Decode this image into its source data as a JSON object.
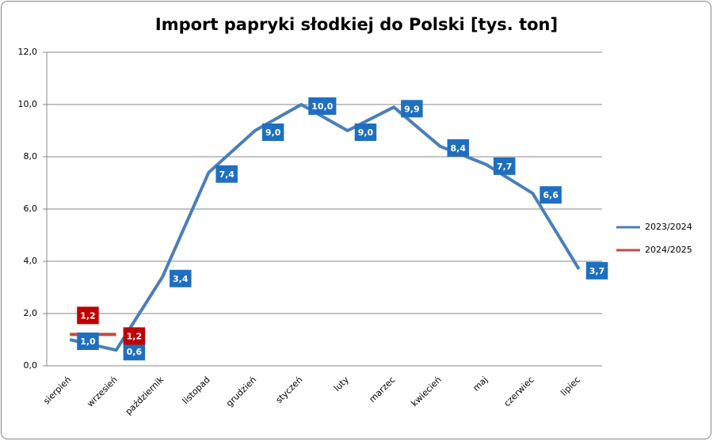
{
  "chart_data": {
    "type": "line",
    "title": "Import papryki słodkiej do Polski [tys. ton]",
    "categories": [
      "sierpień",
      "wrzesień",
      "październik",
      "listopad",
      "grudzień",
      "styczeń",
      "luty",
      "marzec",
      "kwiecień",
      "maj",
      "czerwiec",
      "lipiec"
    ],
    "series": [
      {
        "name": "2023/2024",
        "color": "#4a7ebb",
        "values": [
          1.0,
          0.6,
          3.4,
          7.4,
          9.0,
          10.0,
          9.0,
          9.9,
          8.4,
          7.7,
          6.6,
          3.7
        ],
        "value_labels": [
          "1,0",
          "0,6",
          "3,4",
          "7,4",
          "9,0",
          "10,0",
          "9,0",
          "9,9",
          "8,4",
          "7,7",
          "6,6",
          "3,7"
        ],
        "label_color": "#1f6fbf"
      },
      {
        "name": "2024/2025",
        "color": "#be4b48",
        "values": [
          1.2,
          1.2,
          null,
          null,
          null,
          null,
          null,
          null,
          null,
          null,
          null,
          null
        ],
        "value_labels": [
          "1,2",
          "1,2",
          null,
          null,
          null,
          null,
          null,
          null,
          null,
          null,
          null,
          null
        ],
        "label_color": "#c00000"
      }
    ],
    "ylim": [
      0,
      12
    ],
    "yticks": [
      {
        "value": 0,
        "label": "0,0"
      },
      {
        "value": 2,
        "label": "2,0"
      },
      {
        "value": 4,
        "label": "4,0"
      },
      {
        "value": 6,
        "label": "6,0"
      },
      {
        "value": 8,
        "label": "8,0"
      },
      {
        "value": 10,
        "label": "10,0"
      },
      {
        "value": 12,
        "label": "12,0"
      }
    ],
    "grid": true,
    "legend": "right"
  }
}
